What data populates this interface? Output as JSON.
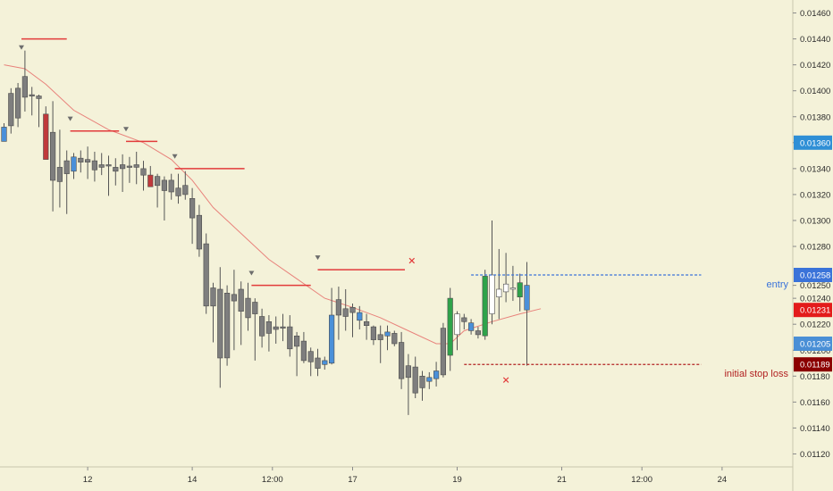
{
  "chart_data": {
    "type": "candlestick",
    "y_axis": {
      "min": 0.0111,
      "max": 0.0147,
      "ticks": [
        "0.01460",
        "0.01440",
        "0.01420",
        "0.01400",
        "0.01380",
        "0.01360",
        "0.01340",
        "0.01320",
        "0.01300",
        "0.01280",
        "0.01250",
        "0.01240",
        "0.01220",
        "0.01200",
        "0.01180",
        "0.01160",
        "0.01140",
        "0.01120"
      ]
    },
    "x_axis": {
      "ticks": [
        {
          "label": "12",
          "bar": 12
        },
        {
          "label": "14",
          "bar": 27
        },
        {
          "label": "12:00",
          "bar": 38.5
        },
        {
          "label": "17",
          "bar": 50
        },
        {
          "label": "19",
          "bar": 65
        },
        {
          "label": "21",
          "bar": 80
        },
        {
          "label": "12:00",
          "bar": 91.5
        },
        {
          "label": "24",
          "bar": 103
        }
      ]
    },
    "candles": [
      {
        "o": 0.01361,
        "h": 0.01375,
        "l": 0.01361,
        "c": 0.01372,
        "color": "blue"
      },
      {
        "o": 0.01373,
        "h": 0.01402,
        "l": 0.01367,
        "c": 0.01398,
        "color": "gray"
      },
      {
        "o": 0.01379,
        "h": 0.01406,
        "l": 0.01372,
        "c": 0.01402,
        "color": "gray"
      },
      {
        "o": 0.01395,
        "h": 0.01431,
        "l": 0.01384,
        "c": 0.01411,
        "color": "gray"
      },
      {
        "o": 0.01397,
        "h": 0.01403,
        "l": 0.01381,
        "c": 0.01396,
        "color": "gray"
      },
      {
        "o": 0.01396,
        "h": 0.01397,
        "l": 0.01372,
        "c": 0.01394,
        "color": "gray"
      },
      {
        "o": 0.01382,
        "h": 0.01388,
        "l": 0.01348,
        "c": 0.01347,
        "color": "red"
      },
      {
        "o": 0.01368,
        "h": 0.01392,
        "l": 0.01307,
        "c": 0.01331,
        "color": "gray"
      },
      {
        "o": 0.0133,
        "h": 0.0137,
        "l": 0.0131,
        "c": 0.01341,
        "color": "gray"
      },
      {
        "o": 0.01336,
        "h": 0.01354,
        "l": 0.01305,
        "c": 0.01346,
        "color": "gray"
      },
      {
        "o": 0.01338,
        "h": 0.01352,
        "l": 0.01332,
        "c": 0.01349,
        "color": "blue"
      },
      {
        "o": 0.01345,
        "h": 0.01354,
        "l": 0.01337,
        "c": 0.01348,
        "color": "gray"
      },
      {
        "o": 0.01345,
        "h": 0.01357,
        "l": 0.01332,
        "c": 0.01347,
        "color": "gray"
      },
      {
        "o": 0.01339,
        "h": 0.01353,
        "l": 0.0133,
        "c": 0.01346,
        "color": "gray"
      },
      {
        "o": 0.01341,
        "h": 0.01352,
        "l": 0.01335,
        "c": 0.01343,
        "color": "gray"
      },
      {
        "o": 0.01342,
        "h": 0.0135,
        "l": 0.01319,
        "c": 0.01343,
        "color": "gray"
      },
      {
        "o": 0.01341,
        "h": 0.01348,
        "l": 0.01327,
        "c": 0.01338,
        "color": "gray"
      },
      {
        "o": 0.0134,
        "h": 0.01351,
        "l": 0.01322,
        "c": 0.01343,
        "color": "gray"
      },
      {
        "o": 0.01342,
        "h": 0.01349,
        "l": 0.01329,
        "c": 0.01341,
        "color": "gray"
      },
      {
        "o": 0.01341,
        "h": 0.01353,
        "l": 0.01328,
        "c": 0.01343,
        "color": "gray"
      },
      {
        "o": 0.0134,
        "h": 0.01346,
        "l": 0.01323,
        "c": 0.01335,
        "color": "gray"
      },
      {
        "o": 0.01335,
        "h": 0.01342,
        "l": 0.01326,
        "c": 0.01326,
        "color": "red"
      },
      {
        "o": 0.01327,
        "h": 0.01336,
        "l": 0.0131,
        "c": 0.01334,
        "color": "gray"
      },
      {
        "o": 0.01331,
        "h": 0.01334,
        "l": 0.013,
        "c": 0.01323,
        "color": "gray"
      },
      {
        "o": 0.01322,
        "h": 0.01336,
        "l": 0.01316,
        "c": 0.01331,
        "color": "gray"
      },
      {
        "o": 0.01319,
        "h": 0.01336,
        "l": 0.01313,
        "c": 0.01325,
        "color": "gray"
      },
      {
        "o": 0.01327,
        "h": 0.01338,
        "l": 0.01316,
        "c": 0.0132,
        "color": "gray"
      },
      {
        "o": 0.01317,
        "h": 0.01325,
        "l": 0.01282,
        "c": 0.01302,
        "color": "gray"
      },
      {
        "o": 0.01304,
        "h": 0.01312,
        "l": 0.01272,
        "c": 0.01278,
        "color": "gray"
      },
      {
        "o": 0.01282,
        "h": 0.0129,
        "l": 0.01228,
        "c": 0.01234,
        "color": "gray"
      },
      {
        "o": 0.01234,
        "h": 0.01252,
        "l": 0.01206,
        "c": 0.01248,
        "color": "gray"
      },
      {
        "o": 0.01247,
        "h": 0.01264,
        "l": 0.01171,
        "c": 0.01194,
        "color": "gray"
      },
      {
        "o": 0.01194,
        "h": 0.0125,
        "l": 0.01188,
        "c": 0.01244,
        "color": "gray"
      },
      {
        "o": 0.01243,
        "h": 0.01262,
        "l": 0.012,
        "c": 0.01238,
        "color": "gray"
      },
      {
        "o": 0.0123,
        "h": 0.01253,
        "l": 0.01204,
        "c": 0.01247,
        "color": "gray"
      },
      {
        "o": 0.0124,
        "h": 0.01252,
        "l": 0.01215,
        "c": 0.01225,
        "color": "gray"
      },
      {
        "o": 0.01228,
        "h": 0.0124,
        "l": 0.01192,
        "c": 0.01237,
        "color": "gray"
      },
      {
        "o": 0.01226,
        "h": 0.01232,
        "l": 0.01202,
        "c": 0.01211,
        "color": "gray"
      },
      {
        "o": 0.01213,
        "h": 0.01227,
        "l": 0.01199,
        "c": 0.01222,
        "color": "gray"
      },
      {
        "o": 0.01216,
        "h": 0.01226,
        "l": 0.01205,
        "c": 0.01218,
        "color": "gray"
      },
      {
        "o": 0.01217,
        "h": 0.01228,
        "l": 0.01207,
        "c": 0.01218,
        "color": "gray"
      },
      {
        "o": 0.01218,
        "h": 0.01227,
        "l": 0.01195,
        "c": 0.01201,
        "color": "gray"
      },
      {
        "o": 0.01203,
        "h": 0.01214,
        "l": 0.0118,
        "c": 0.01211,
        "color": "gray"
      },
      {
        "o": 0.01207,
        "h": 0.01214,
        "l": 0.0119,
        "c": 0.01192,
        "color": "gray"
      },
      {
        "o": 0.01191,
        "h": 0.01202,
        "l": 0.0118,
        "c": 0.01199,
        "color": "gray"
      },
      {
        "o": 0.01194,
        "h": 0.01201,
        "l": 0.0118,
        "c": 0.01186,
        "color": "gray"
      },
      {
        "o": 0.01189,
        "h": 0.01195,
        "l": 0.01185,
        "c": 0.01192,
        "color": "blue"
      },
      {
        "o": 0.0119,
        "h": 0.01248,
        "l": 0.01189,
        "c": 0.01227,
        "color": "blue"
      },
      {
        "o": 0.01227,
        "h": 0.01249,
        "l": 0.01208,
        "c": 0.01239,
        "color": "gray"
      },
      {
        "o": 0.01232,
        "h": 0.01247,
        "l": 0.01215,
        "c": 0.01226,
        "color": "gray"
      },
      {
        "o": 0.01229,
        "h": 0.01236,
        "l": 0.0121,
        "c": 0.01233,
        "color": "gray"
      },
      {
        "o": 0.01229,
        "h": 0.01234,
        "l": 0.01216,
        "c": 0.01223,
        "color": "blue"
      },
      {
        "o": 0.01222,
        "h": 0.01228,
        "l": 0.01208,
        "c": 0.01219,
        "color": "gray"
      },
      {
        "o": 0.01218,
        "h": 0.01219,
        "l": 0.01204,
        "c": 0.01208,
        "color": "gray"
      },
      {
        "o": 0.01212,
        "h": 0.01219,
        "l": 0.0119,
        "c": 0.01208,
        "color": "gray"
      },
      {
        "o": 0.01211,
        "h": 0.01219,
        "l": 0.012,
        "c": 0.01214,
        "color": "blue"
      },
      {
        "o": 0.01213,
        "h": 0.01215,
        "l": 0.01203,
        "c": 0.01205,
        "color": "gray"
      },
      {
        "o": 0.01206,
        "h": 0.01214,
        "l": 0.0117,
        "c": 0.01178,
        "color": "gray"
      },
      {
        "o": 0.01179,
        "h": 0.01197,
        "l": 0.0115,
        "c": 0.01188,
        "color": "gray"
      },
      {
        "o": 0.01187,
        "h": 0.01195,
        "l": 0.01163,
        "c": 0.01167,
        "color": "gray"
      },
      {
        "o": 0.01171,
        "h": 0.01184,
        "l": 0.01161,
        "c": 0.0118,
        "color": "gray"
      },
      {
        "o": 0.01176,
        "h": 0.01183,
        "l": 0.0117,
        "c": 0.01179,
        "color": "blue"
      },
      {
        "o": 0.01178,
        "h": 0.01191,
        "l": 0.01172,
        "c": 0.01184,
        "color": "blue"
      },
      {
        "o": 0.01181,
        "h": 0.01221,
        "l": 0.01179,
        "c": 0.01217,
        "color": "gray"
      },
      {
        "o": 0.01196,
        "h": 0.01248,
        "l": 0.01184,
        "c": 0.0124,
        "color": "green"
      },
      {
        "o": 0.01212,
        "h": 0.0123,
        "l": 0.012,
        "c": 0.01228,
        "color": "white"
      },
      {
        "o": 0.01222,
        "h": 0.01228,
        "l": 0.01216,
        "c": 0.01225,
        "color": "gray"
      },
      {
        "o": 0.01221,
        "h": 0.01224,
        "l": 0.01212,
        "c": 0.01215,
        "color": "blue"
      },
      {
        "o": 0.01215,
        "h": 0.01218,
        "l": 0.01209,
        "c": 0.01212,
        "color": "gray"
      },
      {
        "o": 0.01211,
        "h": 0.01262,
        "l": 0.01208,
        "c": 0.01257,
        "color": "green"
      },
      {
        "o": 0.01228,
        "h": 0.013,
        "l": 0.0122,
        "c": 0.01258,
        "color": "white"
      },
      {
        "o": 0.01241,
        "h": 0.01278,
        "l": 0.01224,
        "c": 0.01247,
        "color": "white"
      },
      {
        "o": 0.01245,
        "h": 0.01275,
        "l": 0.01237,
        "c": 0.01251,
        "color": "white"
      },
      {
        "o": 0.01247,
        "h": 0.01265,
        "l": 0.01238,
        "c": 0.01248,
        "color": "white"
      },
      {
        "o": 0.01241,
        "h": 0.01259,
        "l": 0.0123,
        "c": 0.01252,
        "color": "green"
      },
      {
        "o": 0.0125,
        "h": 0.01268,
        "l": 0.01188,
        "c": 0.01231,
        "color": "blue"
      }
    ],
    "moving_average": {
      "color": "#e8827b",
      "points": [
        [
          0,
          0.0142
        ],
        [
          3,
          0.01417
        ],
        [
          6,
          0.01405
        ],
        [
          10,
          0.01385
        ],
        [
          15,
          0.0137
        ],
        [
          20,
          0.0136
        ],
        [
          24,
          0.01347
        ],
        [
          27,
          0.01331
        ],
        [
          30,
          0.0131
        ],
        [
          34,
          0.0129
        ],
        [
          38,
          0.0127
        ],
        [
          42,
          0.01255
        ],
        [
          46,
          0.0124
        ],
        [
          50,
          0.01233
        ],
        [
          54,
          0.01225
        ],
        [
          58,
          0.01215
        ],
        [
          62,
          0.01205
        ],
        [
          64,
          0.01205
        ],
        [
          66,
          0.01215
        ],
        [
          70,
          0.01222
        ],
        [
          74,
          0.01228
        ],
        [
          77,
          0.01232
        ]
      ]
    },
    "resistance_lines": [
      {
        "price": 0.0144,
        "from": 2.5,
        "to": 9
      },
      {
        "price": 0.01369,
        "from": 9.5,
        "to": 16.5
      },
      {
        "price": 0.01361,
        "from": 17.5,
        "to": 22
      },
      {
        "price": 0.0134,
        "from": 24.5,
        "to": 34.5
      },
      {
        "price": 0.0125,
        "from": 35.5,
        "to": 44
      },
      {
        "price": 0.01262,
        "from": 45,
        "to": 57.5
      }
    ],
    "triangle_markers": [
      {
        "bar": 2.5,
        "price": 0.01433
      },
      {
        "bar": 9.5,
        "price": 0.01378
      },
      {
        "bar": 17.5,
        "price": 0.0137
      },
      {
        "bar": 24.5,
        "price": 0.01349
      },
      {
        "bar": 35.5,
        "price": 0.01259
      },
      {
        "bar": 45,
        "price": 0.01271
      }
    ],
    "x_markers": [
      {
        "bar": 58.5,
        "price": 0.01269
      },
      {
        "bar": 72,
        "price": 0.01177
      }
    ],
    "entry_line": {
      "price": 0.01258,
      "from": 67,
      "to": 100,
      "label": "entry",
      "color": "#3a73d9"
    },
    "stop_line": {
      "price": 0.01189,
      "from": 66,
      "to": 100,
      "label": "initial stop loss",
      "color": "#b22222"
    },
    "price_labels": [
      {
        "text": "0.01360",
        "price": 0.0136,
        "color": "#2f8fd6"
      },
      {
        "text": "0.01258",
        "price": 0.01258,
        "color": "#3a73d9"
      },
      {
        "text": "0.01231",
        "price": 0.01231,
        "color": "#e31b1b"
      },
      {
        "text": "0.01205",
        "price": 0.01205,
        "color": "#4a8fd6"
      },
      {
        "text": "0.01189",
        "price": 0.01189,
        "color": "#8b0000"
      }
    ],
    "colors": {
      "background": "#f4f2d9",
      "gray": "#7e7e7e",
      "blue": "#4a90d9",
      "red": "#c0393b",
      "green": "#2ea34a",
      "white": "#ffffff",
      "resistance": "#e23b3b"
    }
  }
}
